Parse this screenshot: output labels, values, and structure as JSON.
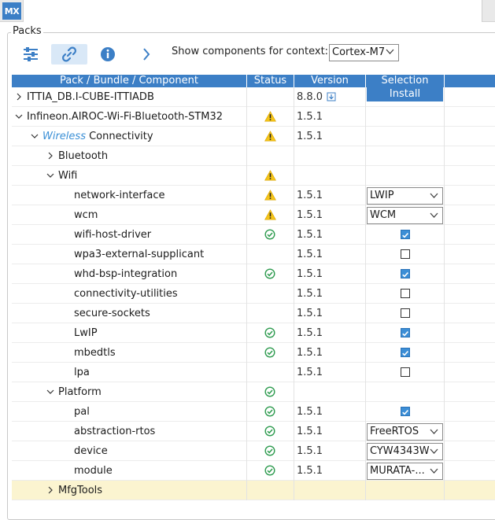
{
  "app": {
    "logo_text": "MX"
  },
  "packs": {
    "label": "Packs"
  },
  "toolbar": {
    "context_label": "Show components for context:",
    "context_value": "Cortex-M7"
  },
  "columns": [
    "Pack / Bundle / Component",
    "Status",
    "Version",
    "Selection"
  ],
  "colors": {
    "accent": "#3c7fc6",
    "warning": "#f5c518",
    "ok": "#2e9b4f",
    "highlight_row": "#fbf4d0"
  },
  "rows": [
    {
      "name": "ITTIA_DB.I-CUBE-ITTIADB",
      "indent": 0,
      "arrow": "right",
      "status": "",
      "version": "8.8.0",
      "version_icon": "download-icon",
      "selection": {
        "type": "button",
        "label": "Install"
      }
    },
    {
      "name": "Infineon.AIROC-Wi-Fi-Bluetooth-STM32",
      "indent": 0,
      "arrow": "down",
      "status": "warning",
      "version": "1.5.1",
      "selection": {
        "type": "none"
      }
    },
    {
      "name_prefix": "Wireless",
      "name": "Connectivity",
      "indent": 1,
      "arrow": "down",
      "status": "warning",
      "version": "1.5.1",
      "selection": {
        "type": "none"
      }
    },
    {
      "name": "Bluetooth",
      "indent": 2,
      "arrow": "right",
      "status": "",
      "version": "",
      "selection": {
        "type": "none"
      }
    },
    {
      "name": "Wifi",
      "indent": 2,
      "arrow": "down",
      "status": "warning",
      "version": "",
      "selection": {
        "type": "none"
      }
    },
    {
      "name": "network-interface",
      "indent": 3,
      "arrow": "",
      "status": "warning",
      "version": "1.5.1",
      "selection": {
        "type": "dropdown",
        "value": "LWIP"
      }
    },
    {
      "name": "wcm",
      "indent": 3,
      "arrow": "",
      "status": "warning",
      "version": "1.5.1",
      "selection": {
        "type": "dropdown",
        "value": "WCM"
      }
    },
    {
      "name": "wifi-host-driver",
      "indent": 3,
      "arrow": "",
      "status": "ok",
      "version": "1.5.1",
      "selection": {
        "type": "checkbox",
        "checked": true
      }
    },
    {
      "name": "wpa3-external-supplicant",
      "indent": 3,
      "arrow": "",
      "status": "",
      "version": "1.5.1",
      "selection": {
        "type": "checkbox",
        "checked": false
      }
    },
    {
      "name": "whd-bsp-integration",
      "indent": 3,
      "arrow": "",
      "status": "ok",
      "version": "1.5.1",
      "selection": {
        "type": "checkbox",
        "checked": true
      }
    },
    {
      "name": "connectivity-utilities",
      "indent": 3,
      "arrow": "",
      "status": "",
      "version": "1.5.1",
      "selection": {
        "type": "checkbox",
        "checked": false
      }
    },
    {
      "name": "secure-sockets",
      "indent": 3,
      "arrow": "",
      "status": "",
      "version": "1.5.1",
      "selection": {
        "type": "checkbox",
        "checked": false
      }
    },
    {
      "name": "LwIP",
      "indent": 3,
      "arrow": "",
      "status": "ok",
      "version": "1.5.1",
      "selection": {
        "type": "checkbox",
        "checked": true
      }
    },
    {
      "name": "mbedtls",
      "indent": 3,
      "arrow": "",
      "status": "ok",
      "version": "1.5.1",
      "selection": {
        "type": "checkbox",
        "checked": true
      }
    },
    {
      "name": "lpa",
      "indent": 3,
      "arrow": "",
      "status": "",
      "version": "1.5.1",
      "selection": {
        "type": "checkbox",
        "checked": false
      }
    },
    {
      "name": "Platform",
      "indent": 2,
      "arrow": "down",
      "status": "ok",
      "version": "",
      "selection": {
        "type": "none"
      }
    },
    {
      "name": "pal",
      "indent": 3,
      "arrow": "",
      "status": "ok",
      "version": "1.5.1",
      "selection": {
        "type": "checkbox",
        "checked": true
      }
    },
    {
      "name": "abstraction-rtos",
      "indent": 3,
      "arrow": "",
      "status": "ok",
      "version": "1.5.1",
      "selection": {
        "type": "dropdown",
        "value": "FreeRTOS"
      }
    },
    {
      "name": "device",
      "indent": 3,
      "arrow": "",
      "status": "ok",
      "version": "1.5.1",
      "selection": {
        "type": "dropdown",
        "value": "CYW4343W"
      }
    },
    {
      "name": "module",
      "indent": 3,
      "arrow": "",
      "status": "ok",
      "version": "1.5.1",
      "selection": {
        "type": "dropdown",
        "value": "MURATA-..."
      }
    },
    {
      "name": "MfgTools",
      "indent": 2,
      "arrow": "right",
      "status": "",
      "version": "",
      "selection": {
        "type": "none"
      },
      "highlight": true
    }
  ]
}
